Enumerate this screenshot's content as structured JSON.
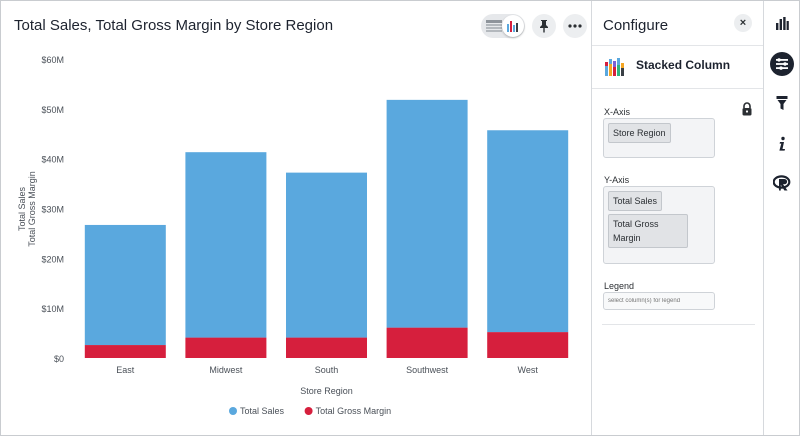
{
  "chart_title": "Total Sales, Total Gross Margin by Store Region",
  "toolbar": {
    "icons": [
      "table-icon",
      "chart-icon",
      "pin-icon",
      "more-icon"
    ]
  },
  "chart_data": {
    "type": "bar",
    "stacked": true,
    "title": "Total Sales, Total Gross Margin by Store Region",
    "xlabel": "Store Region",
    "ylabel_lines": [
      "Total Sales",
      "Total Gross Margin"
    ],
    "categories": [
      "East",
      "Midwest",
      "South",
      "Southwest",
      "West"
    ],
    "series": [
      {
        "name": "Total Gross Margin",
        "values": [
          2.6,
          4.1,
          4.1,
          6.1,
          5.2
        ],
        "color": "#d61f3d"
      },
      {
        "name": "Total Sales",
        "values": [
          24.1,
          37.2,
          33.1,
          45.7,
          40.5
        ],
        "color": "#5aa8de"
      }
    ],
    "yticks": [
      "$0",
      "$10M",
      "$20M",
      "$30M",
      "$40M",
      "$50M",
      "$60M"
    ],
    "ylim": [
      0,
      60
    ],
    "grid": false,
    "legend_position": "bottom",
    "legend": [
      {
        "label": "Total Sales",
        "color": "#5aa8de"
      },
      {
        "label": "Total Gross Margin",
        "color": "#d61f3d"
      }
    ]
  },
  "config": {
    "title": "Configure",
    "close_label": "×",
    "chart_type": "Stacked Column",
    "xaxis_label": "X-Axis",
    "xaxis_items": [
      "Store Region"
    ],
    "yaxis_label": "Y-Axis",
    "yaxis_items": [
      "Total Sales",
      "Total Gross\nMargin"
    ],
    "legend_label": "Legend",
    "legend_placeholder": "select column(s) for legend"
  },
  "rail": {
    "icons": [
      "bar-chart-icon",
      "settings-icon",
      "filter-icon",
      "info-icon",
      "r-icon"
    ],
    "active": "settings-icon"
  }
}
